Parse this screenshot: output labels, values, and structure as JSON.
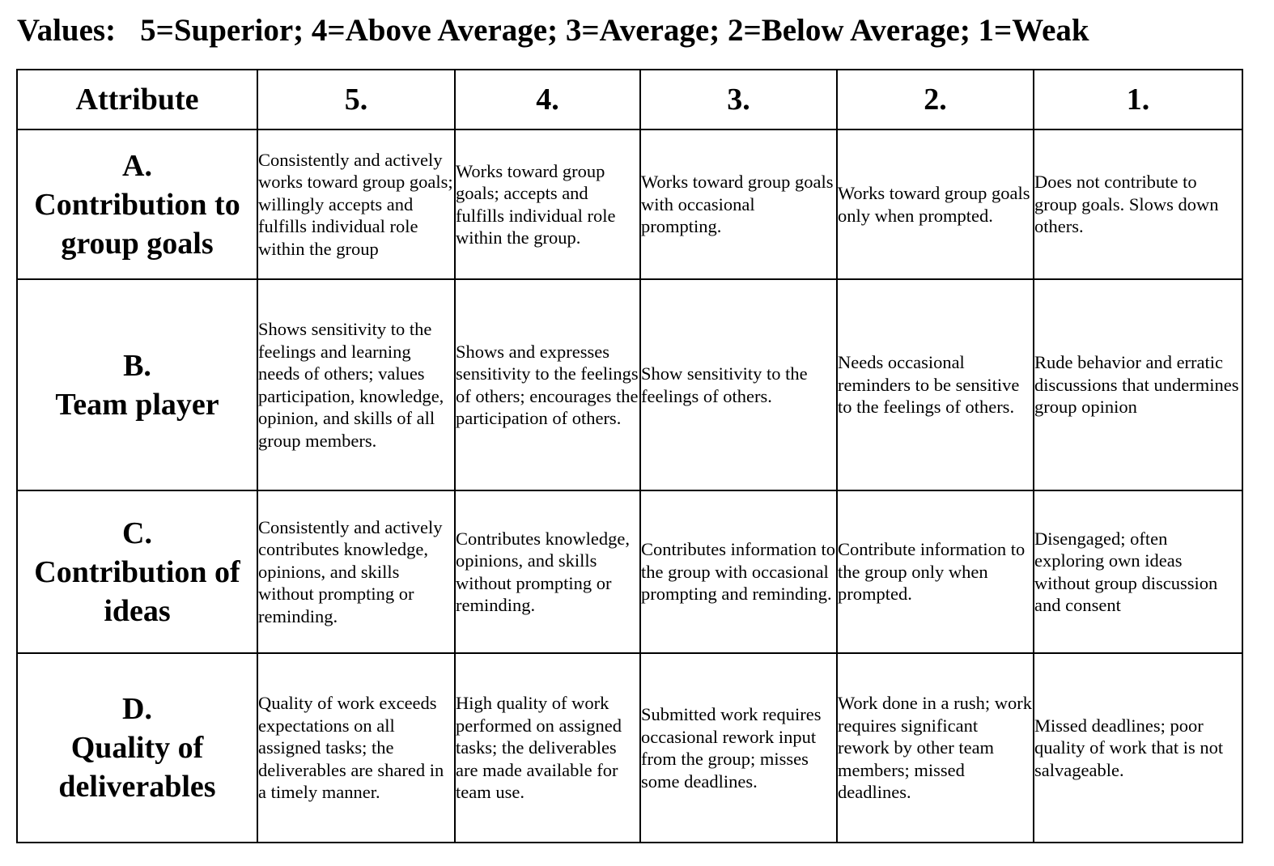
{
  "values_legend": {
    "label": "Values:",
    "text": "5=Superior; 4=Above Average; 3=Average; 2=Below Average; 1=Weak"
  },
  "table": {
    "headers": [
      "Attribute",
      "5.",
      "4.",
      "3.",
      "2.",
      "1."
    ],
    "rows": [
      {
        "letter": "A.",
        "name": "Contribution to group goals",
        "cells": [
          "Consistently and actively works toward group goals; willingly accepts and fulfills individual role within the group",
          "Works toward group goals; accepts and fulfills individual role within the group.",
          "Works toward group goals with occasional prompting.",
          "Works toward group goals only when prompted.",
          "Does not contribute to group goals. Slows down others."
        ]
      },
      {
        "letter": "B.",
        "name": "Team player",
        "cells": [
          "Shows sensitivity to the feelings and learning needs of others; values participation, knowledge, opinion, and skills of all group members.",
          "Shows and expresses sensitivity to the feelings of others; encourages the participation of others.",
          "Show sensitivity to the feelings of others.",
          "Needs occasional reminders to be sensitive to the feelings of others.",
          "Rude behavior and erratic discussions that undermines group opinion"
        ]
      },
      {
        "letter": "C.",
        "name": "Contribution of ideas",
        "cells": [
          "Consistently and actively contributes knowledge, opinions, and skills without prompting or reminding.",
          "Contributes knowledge, opinions, and skills without prompting or reminding.",
          "Contributes information to the group with occasional prompting and reminding.",
          "Contribute information to the group only when prompted.",
          "Disengaged; often exploring own ideas without group discussion and consent"
        ]
      },
      {
        "letter": "D.",
        "name": "Quality of deliverables",
        "cells": [
          "Quality of work exceeds expectations on all assigned tasks; the deliverables are shared in a timely manner.",
          "High quality of work performed on assigned tasks; the deliverables are made available for team use.",
          "Submitted work requires occasional rework input from the group; misses some deadlines.",
          "Work done in a rush; work requires significant rework by other team members; missed deadlines.",
          "Missed deadlines; poor quality of work that is not salvageable."
        ]
      }
    ]
  }
}
